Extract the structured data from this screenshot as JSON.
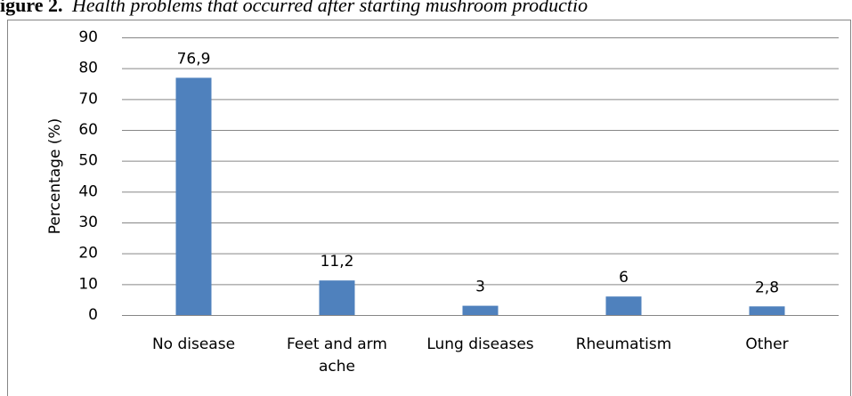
{
  "chart_data": {
    "type": "bar",
    "title_label": "igure 2.",
    "title": "Health problems that occurred after starting mushroom productio",
    "y_label": "Percentage (%)",
    "categories": [
      "No disease",
      "Feet and arm ache",
      "Lung diseases",
      "Rheumatism",
      "Other"
    ],
    "values": [
      76.9,
      11.2,
      3,
      6,
      2.8
    ],
    "value_labels": [
      "76,9",
      "11,2",
      "3",
      "6",
      "2,8"
    ],
    "color": "#4f81bd",
    "ylim": [
      0,
      90
    ],
    "yticks": [
      0,
      10,
      20,
      30,
      40,
      50,
      60,
      70,
      80,
      90
    ],
    "grid": true
  }
}
